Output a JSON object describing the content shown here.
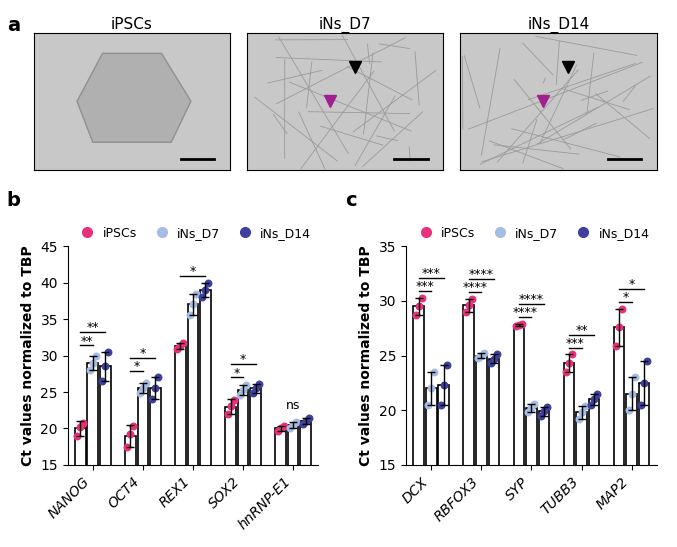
{
  "image_panel": {
    "panel_label": "a",
    "titles": [
      "iPSCs",
      "iNs_D7",
      "iNs_D14"
    ]
  },
  "chart_data": [
    {
      "type": "bar",
      "panel_label": "b",
      "y_label": "Ct values normalized to TBP",
      "categories": [
        "NANOG",
        "OCT4",
        "REX1",
        "SOX2",
        "hnRNP-E1"
      ],
      "series": [
        {
          "name": "iPSCs",
          "color": "#e8317a",
          "values": [
            20.0,
            19.0,
            31.3,
            23.0,
            20.0
          ],
          "error": [
            1.0,
            1.5,
            0.4,
            1.0,
            0.4
          ],
          "points": [
            [
              19.0,
              20.2,
              20.8
            ],
            [
              17.5,
              19.2,
              20.3
            ],
            [
              30.9,
              31.3,
              31.7
            ],
            [
              22.0,
              23.1,
              23.9
            ],
            [
              19.6,
              20.0,
              20.4
            ]
          ]
        },
        {
          "name": "iNs_D7",
          "color": "#a6bde3",
          "values": [
            29.0,
            25.5,
            37.0,
            25.3,
            20.5
          ],
          "error": [
            1.0,
            0.7,
            1.5,
            0.7,
            0.4
          ],
          "points": [
            [
              28.0,
              29.0,
              30.0
            ],
            [
              24.8,
              25.5,
              26.2
            ],
            [
              35.5,
              37.0,
              38.5
            ],
            [
              24.6,
              25.3,
              26.0
            ],
            [
              20.1,
              20.5,
              20.9
            ]
          ]
        },
        {
          "name": "iNs_D14",
          "color": "#3f3f9e",
          "values": [
            28.5,
            25.5,
            39.0,
            25.5,
            21.0
          ],
          "error": [
            2.0,
            1.5,
            1.0,
            0.6,
            0.4
          ],
          "points": [
            [
              26.5,
              28.5,
              30.5
            ],
            [
              24.0,
              25.5,
              27.0
            ],
            [
              38.0,
              39.0,
              40.0
            ],
            [
              24.9,
              25.5,
              26.1
            ],
            [
              20.6,
              21.0,
              21.4
            ]
          ]
        }
      ],
      "significance": [
        {
          "category": "NANOG",
          "groups": [
            "iPSCs",
            "iNs_D7"
          ],
          "label": "**"
        },
        {
          "category": "NANOG",
          "groups": [
            "iPSCs",
            "iNs_D14"
          ],
          "label": "**"
        },
        {
          "category": "OCT4",
          "groups": [
            "iPSCs",
            "iNs_D7"
          ],
          "label": "*"
        },
        {
          "category": "OCT4",
          "groups": [
            "iPSCs",
            "iNs_D14"
          ],
          "label": "*"
        },
        {
          "category": "REX1",
          "groups": [
            "iPSCs",
            "iNs_D14"
          ],
          "label": "*"
        },
        {
          "category": "SOX2",
          "groups": [
            "iPSCs",
            "iNs_D7"
          ],
          "label": "*"
        },
        {
          "category": "SOX2",
          "groups": [
            "iPSCs",
            "iNs_D14"
          ],
          "label": "*"
        },
        {
          "category": "hnRNP-E1",
          "groups": [],
          "label": "ns"
        }
      ],
      "ylim": [
        15,
        45
      ],
      "yticks": [
        15,
        20,
        25,
        30,
        35,
        40,
        45
      ],
      "legend": "upper center"
    },
    {
      "type": "bar",
      "panel_label": "c",
      "y_label": "Ct values normalized to TBP",
      "categories": [
        "DCX",
        "RBFOX3",
        "SYP",
        "TUBB3",
        "MAP2"
      ],
      "series": [
        {
          "name": "iPSCs",
          "color": "#e8317a",
          "values": [
            29.5,
            29.6,
            27.8,
            24.3,
            27.6
          ],
          "error": [
            0.8,
            0.6,
            0.1,
            0.8,
            1.7
          ],
          "points": [
            [
              28.7,
              29.5,
              30.3
            ],
            [
              29.0,
              29.6,
              30.2
            ],
            [
              27.7,
              27.8,
              27.9
            ],
            [
              23.5,
              24.3,
              25.1
            ],
            [
              25.9,
              27.6,
              29.3
            ]
          ]
        },
        {
          "name": "iNs_D7",
          "color": "#a6bde3",
          "values": [
            22.0,
            25.0,
            20.2,
            19.8,
            21.5
          ],
          "error": [
            1.5,
            0.2,
            0.4,
            0.6,
            1.5
          ],
          "points": [
            [
              20.5,
              22.0,
              23.5
            ],
            [
              24.8,
              25.0,
              25.2
            ],
            [
              19.8,
              20.2,
              20.6
            ],
            [
              19.2,
              19.8,
              20.4
            ],
            [
              20.0,
              21.5,
              23.0
            ]
          ]
        },
        {
          "name": "iNs_D14",
          "color": "#3f3f9e",
          "values": [
            22.3,
            24.7,
            19.9,
            21.0,
            22.5
          ],
          "error": [
            1.8,
            0.4,
            0.4,
            0.5,
            2.0
          ],
          "points": [
            [
              20.5,
              22.3,
              24.1
            ],
            [
              24.3,
              24.7,
              25.1
            ],
            [
              19.5,
              19.9,
              20.3
            ],
            [
              20.5,
              21.0,
              21.5
            ],
            [
              20.5,
              22.5,
              24.5
            ]
          ]
        }
      ],
      "significance": [
        {
          "category": "DCX",
          "groups": [
            "iPSCs",
            "iNs_D7"
          ],
          "label": "***"
        },
        {
          "category": "DCX",
          "groups": [
            "iPSCs",
            "iNs_D14"
          ],
          "label": "***"
        },
        {
          "category": "RBFOX3",
          "groups": [
            "iPSCs",
            "iNs_D7"
          ],
          "label": "****"
        },
        {
          "category": "RBFOX3",
          "groups": [
            "iPSCs",
            "iNs_D14"
          ],
          "label": "****"
        },
        {
          "category": "SYP",
          "groups": [
            "iPSCs",
            "iNs_D7"
          ],
          "label": "****"
        },
        {
          "category": "SYP",
          "groups": [
            "iPSCs",
            "iNs_D14"
          ],
          "label": "****"
        },
        {
          "category": "TUBB3",
          "groups": [
            "iPSCs",
            "iNs_D7"
          ],
          "label": "***"
        },
        {
          "category": "TUBB3",
          "groups": [
            "iPSCs",
            "iNs_D14"
          ],
          "label": "**"
        },
        {
          "category": "MAP2",
          "groups": [
            "iPSCs",
            "iNs_D7"
          ],
          "label": "*"
        },
        {
          "category": "MAP2",
          "groups": [
            "iPSCs",
            "iNs_D14"
          ],
          "label": "*"
        }
      ],
      "ylim": [
        15,
        35
      ],
      "yticks": [
        15,
        20,
        25,
        30,
        35
      ],
      "legend": "upper center"
    }
  ]
}
